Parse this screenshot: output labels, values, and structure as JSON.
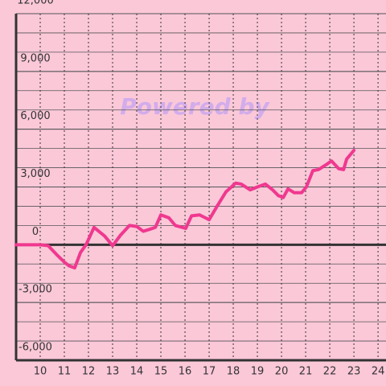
{
  "chart_data": {
    "type": "line",
    "watermark": "Powered by",
    "x": [
      9,
      10,
      10.33,
      10.67,
      11,
      11.2,
      11.43,
      11.67,
      11.9,
      12.23,
      12.67,
      13,
      13.33,
      13.7,
      14,
      14.27,
      14.53,
      14.77,
      15,
      15.33,
      15.6,
      16.03,
      16.27,
      16.6,
      17,
      17.33,
      17.7,
      18.1,
      18.33,
      18.7,
      19,
      19.33,
      19.63,
      19.87,
      20.07,
      20.27,
      20.53,
      20.83,
      21.03,
      21.3,
      21.53,
      21.9,
      22.07,
      22.37,
      22.57,
      22.7,
      23
    ],
    "series": [
      {
        "color": "#f0388f",
        "values": [
          0,
          0,
          -50,
          -500,
          -900,
          -1100,
          -1200,
          -400,
          0,
          900,
          450,
          -50,
          500,
          1000,
          950,
          700,
          800,
          900,
          1550,
          1400,
          1000,
          850,
          1500,
          1550,
          1300,
          2000,
          2750,
          3200,
          3150,
          2850,
          3000,
          3150,
          2850,
          2550,
          2450,
          2900,
          2700,
          2700,
          3000,
          3850,
          3900,
          4200,
          4350,
          3950,
          3900,
          4450,
          4900
        ]
      }
    ],
    "xlim": [
      9,
      24.33
    ],
    "xticks": [
      10,
      11,
      12,
      13,
      14,
      15,
      16,
      17,
      18,
      19,
      20,
      21,
      22,
      23,
      24
    ],
    "ylim": [
      -6000,
      12000
    ],
    "yticks": [
      {
        "value": -6000,
        "label": "-6,000"
      },
      {
        "value": -3000,
        "label": "-3,000"
      },
      0,
      {
        "value": 3000,
        "label": "3,000"
      },
      {
        "value": 6000,
        "label": "6,000"
      },
      {
        "value": 9000,
        "label": "9,000"
      },
      {
        "value": 12000,
        "label": "12,000"
      }
    ],
    "minor_y_step": 1000,
    "grid": true
  }
}
